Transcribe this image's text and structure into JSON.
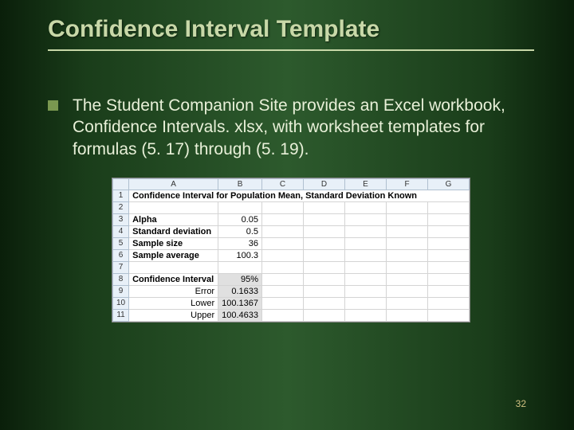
{
  "slide": {
    "title": "Confidence Interval Template",
    "body": "The Student Companion Site provides an Excel workbook, Confidence Intervals. xlsx, with worksheet templates for formulas (5. 17) through (5. 19).",
    "page_number": "32"
  },
  "excel": {
    "columns": [
      "A",
      "B",
      "C",
      "D",
      "E",
      "F",
      "G"
    ],
    "row_numbers": [
      "1",
      "2",
      "3",
      "4",
      "5",
      "6",
      "7",
      "8",
      "9",
      "10",
      "11"
    ],
    "title_text": "Confidence Interval for Population Mean, Standard Deviation Known",
    "rows": [
      {
        "label": "Alpha",
        "value": "0.05",
        "shaded": false
      },
      {
        "label": "Standard deviation",
        "value": "0.5",
        "shaded": false
      },
      {
        "label": "Sample size",
        "value": "36",
        "shaded": false
      },
      {
        "label": "Sample average",
        "value": "100.3",
        "shaded": false
      }
    ],
    "ci_header": "Confidence Interval",
    "ci_header_value": "95%",
    "ci_rows": [
      {
        "label": "Error",
        "value": "0.1633"
      },
      {
        "label": "Lower",
        "value": "100.1367"
      },
      {
        "label": "Upper",
        "value": "100.4633"
      }
    ],
    "colors": {
      "slide_title": "#c8d8a8",
      "bullet": "#7a9850",
      "body_text": "#e8f0d8",
      "excel_header_bg": "#e8f0f8",
      "excel_shaded": "#e0e0e0",
      "page_num": "#d0c080"
    }
  }
}
